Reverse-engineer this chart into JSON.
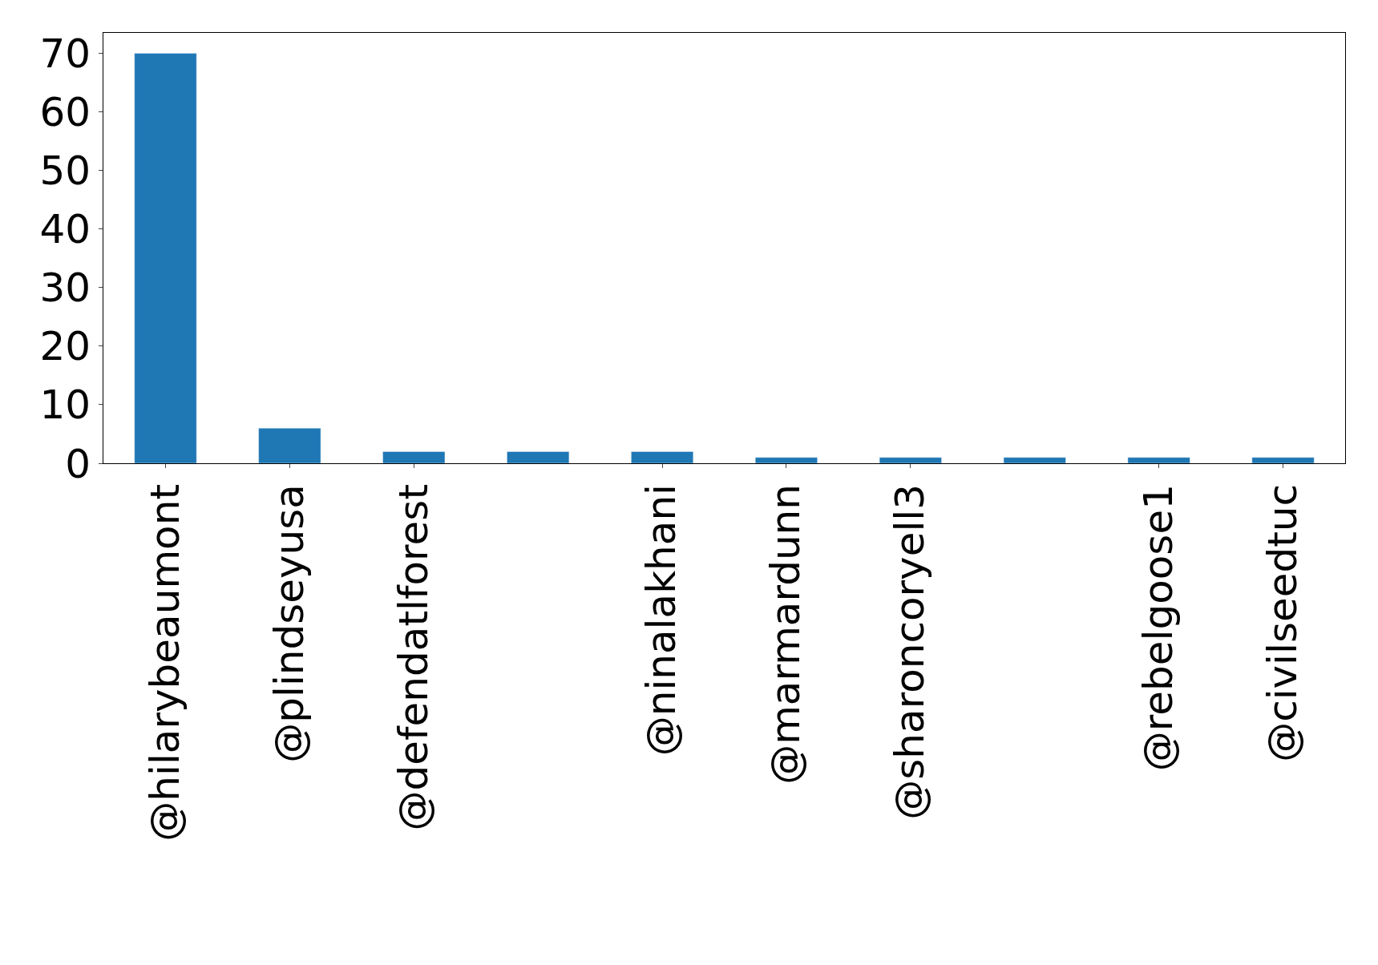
{
  "chart_data": {
    "type": "bar",
    "categories": [
      "@hilarybeaumont",
      "@plindseyusa",
      "@defendatlforest",
      null,
      "@ninalakhani",
      "@marmardunn",
      "@sharoncoryell3",
      null,
      "@rebelgoose1",
      "@civilseedtuc"
    ],
    "values": [
      70,
      6,
      2,
      2,
      2,
      1,
      1,
      1,
      1,
      1
    ],
    "color": "#1f77b4",
    "ylim": [
      0,
      73.5
    ],
    "yticks": [
      0,
      10,
      20,
      30,
      40,
      50,
      60,
      70
    ],
    "legend": false
  }
}
